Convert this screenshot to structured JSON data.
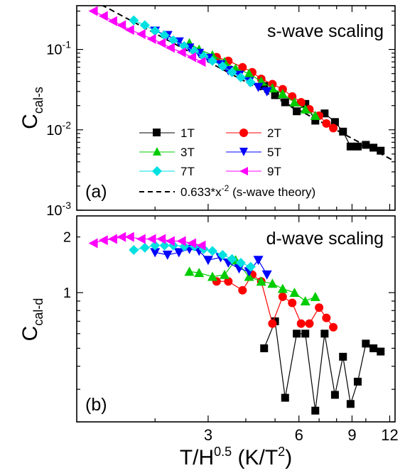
{
  "chart_data": [
    {
      "type": "scatter",
      "panel": "(a)",
      "title": "s-wave scaling",
      "ylabel": "C",
      "ylabel_sub": "cal-s",
      "xscale": "log",
      "yscale": "log",
      "xlim": [
        1.1,
        12.5
      ],
      "ylim": [
        0.001,
        0.35
      ],
      "yticks": [
        {
          "value": 0.1,
          "base": "10",
          "exp": "-1"
        },
        {
          "value": 0.01,
          "base": "10",
          "exp": "-2"
        },
        {
          "value": 0.001,
          "base": "10",
          "exp": "-3"
        }
      ],
      "legend_position": "bottom-center",
      "series": [
        {
          "name": "1T",
          "color": "#000000",
          "marker": "square",
          "x": [
            4.6,
            5.0,
            5.4,
            5.9,
            6.3,
            6.8,
            7.3,
            7.9,
            8.4,
            8.9,
            9.4,
            10.0,
            10.6,
            11.2
          ],
          "y": [
            0.035,
            0.027,
            0.022,
            0.017,
            0.021,
            0.013,
            0.016,
            0.0125,
            0.0095,
            0.0062,
            0.0062,
            0.0065,
            0.006,
            0.0055
          ]
        },
        {
          "name": "2T",
          "color": "#ff0000",
          "marker": "circle",
          "x": [
            3.2,
            3.5,
            3.9,
            4.2,
            4.5,
            4.9,
            5.3,
            5.7,
            6.1,
            6.5,
            7.0,
            7.4,
            7.8
          ],
          "y": [
            0.08,
            0.072,
            0.06,
            0.052,
            0.043,
            0.037,
            0.032,
            0.026,
            0.022,
            0.018,
            0.015,
            0.012,
            0.0105
          ]
        },
        {
          "name": "3T",
          "color": "#00cc00",
          "marker": "triangle-up",
          "x": [
            2.6,
            2.8,
            3.1,
            3.4,
            3.7,
            4.1,
            4.5,
            4.9,
            5.3,
            5.8,
            6.3,
            6.8
          ],
          "y": [
            0.12,
            0.1,
            0.085,
            0.07,
            0.058,
            0.05,
            0.04,
            0.033,
            0.028,
            0.022,
            0.018,
            0.015
          ]
        },
        {
          "name": "5T",
          "color": "#0000ff",
          "marker": "triangle-down",
          "x": [
            2.0,
            2.2,
            2.4,
            2.6,
            2.8,
            3.0,
            3.3,
            3.5,
            3.8,
            4.1,
            4.4,
            4.7
          ],
          "y": [
            0.17,
            0.15,
            0.125,
            0.105,
            0.09,
            0.078,
            0.065,
            0.055,
            0.048,
            0.04,
            0.034,
            0.03
          ]
        },
        {
          "name": "7T",
          "color": "#00e0e0",
          "marker": "diamond",
          "x": [
            1.7,
            1.85,
            2.0,
            2.15,
            2.3,
            2.5,
            2.7,
            2.9,
            3.1,
            3.35,
            3.6,
            3.85,
            4.15
          ],
          "y": [
            0.23,
            0.2,
            0.17,
            0.15,
            0.13,
            0.11,
            0.095,
            0.082,
            0.072,
            0.062,
            0.052,
            0.045,
            0.039
          ]
        },
        {
          "name": "9T",
          "color": "#ff00ff",
          "marker": "triangle-left",
          "x": [
            1.25,
            1.35,
            1.45,
            1.55,
            1.65,
            1.8,
            1.95,
            2.1,
            2.25,
            2.45,
            2.65,
            2.85
          ],
          "y": [
            0.3,
            0.26,
            0.225,
            0.2,
            0.175,
            0.155,
            0.135,
            0.12,
            0.105,
            0.092,
            0.08,
            0.07
          ]
        },
        {
          "name": "0.633*x^-2 (s-wave theory)",
          "label_text": "0.633*x",
          "label_exp": "-2",
          "label_suffix": " (s-wave theory)",
          "color": "#000000",
          "style": "dashed",
          "coefficient": 0.633,
          "exponent": -2
        }
      ]
    },
    {
      "type": "scatter",
      "panel": "(b)",
      "title": "d-wave scaling",
      "ylabel": "C",
      "ylabel_sub": "cal-d",
      "xlabel": "T/H",
      "xlabel_sup": "0.5",
      "xlabel_units": " (K/T",
      "xlabel_units_sup": "2",
      "xlabel_units_end": ")",
      "xscale": "log",
      "yscale": "log",
      "xlim": [
        1.1,
        12.5
      ],
      "ylim": [
        0.2,
        2.6
      ],
      "xticks": [
        3,
        6,
        9,
        12
      ],
      "yticks": [
        1,
        2
      ],
      "series": [
        {
          "name": "1T",
          "color": "#000000",
          "marker": "square",
          "x": [
            4.6,
            5.0,
            5.4,
            5.9,
            6.3,
            6.8,
            7.3,
            7.9,
            8.4,
            8.9,
            9.4,
            10.0,
            10.6,
            11.2
          ],
          "y": [
            0.5,
            0.7,
            0.27,
            0.6,
            0.6,
            0.23,
            0.6,
            0.28,
            0.45,
            0.25,
            0.33,
            0.53,
            0.5,
            0.48
          ]
        },
        {
          "name": "2T",
          "color": "#ff0000",
          "marker": "circle",
          "x": [
            3.2,
            3.5,
            3.9,
            4.2,
            4.5,
            4.9,
            5.3,
            5.7,
            6.1,
            6.5,
            7.0,
            7.4,
            7.8
          ],
          "y": [
            1.15,
            1.15,
            1.03,
            1.25,
            1.15,
            0.68,
            0.95,
            0.88,
            0.68,
            0.68,
            0.83,
            0.73,
            0.65
          ]
        },
        {
          "name": "3T",
          "color": "#00cc00",
          "marker": "triangle-up",
          "x": [
            2.6,
            2.8,
            3.1,
            3.4,
            3.7,
            4.1,
            4.5,
            4.9,
            5.3,
            5.8,
            6.3,
            6.8
          ],
          "y": [
            1.3,
            1.28,
            1.22,
            1.25,
            1.5,
            1.22,
            1.15,
            1.12,
            1.05,
            1.0,
            0.9,
            0.95
          ]
        },
        {
          "name": "5T",
          "color": "#0000ff",
          "marker": "triangle-down",
          "x": [
            2.0,
            2.2,
            2.4,
            2.6,
            2.8,
            3.0,
            3.3,
            3.5,
            3.8,
            4.1,
            4.4,
            4.7
          ],
          "y": [
            1.65,
            1.6,
            1.65,
            1.72,
            1.68,
            1.5,
            1.55,
            1.45,
            1.35,
            1.3,
            1.5,
            1.25
          ]
        },
        {
          "name": "7T",
          "color": "#00e0e0",
          "marker": "diamond",
          "x": [
            1.7,
            1.85,
            2.0,
            2.15,
            2.3,
            2.5,
            2.7,
            2.9,
            3.1,
            3.35,
            3.6,
            3.85,
            4.15
          ],
          "y": [
            1.7,
            1.75,
            1.8,
            1.8,
            1.8,
            1.78,
            1.78,
            1.72,
            1.68,
            1.6,
            1.52,
            1.45,
            1.38
          ]
        },
        {
          "name": "9T",
          "color": "#ff00ff",
          "marker": "triangle-left",
          "x": [
            1.25,
            1.35,
            1.45,
            1.55,
            1.65,
            1.8,
            1.95,
            2.1,
            2.25,
            2.45,
            2.65,
            2.85
          ],
          "y": [
            1.85,
            1.92,
            1.95,
            2.0,
            2.0,
            1.95,
            1.95,
            1.95,
            1.9,
            1.9,
            1.85,
            1.8
          ]
        }
      ]
    }
  ]
}
